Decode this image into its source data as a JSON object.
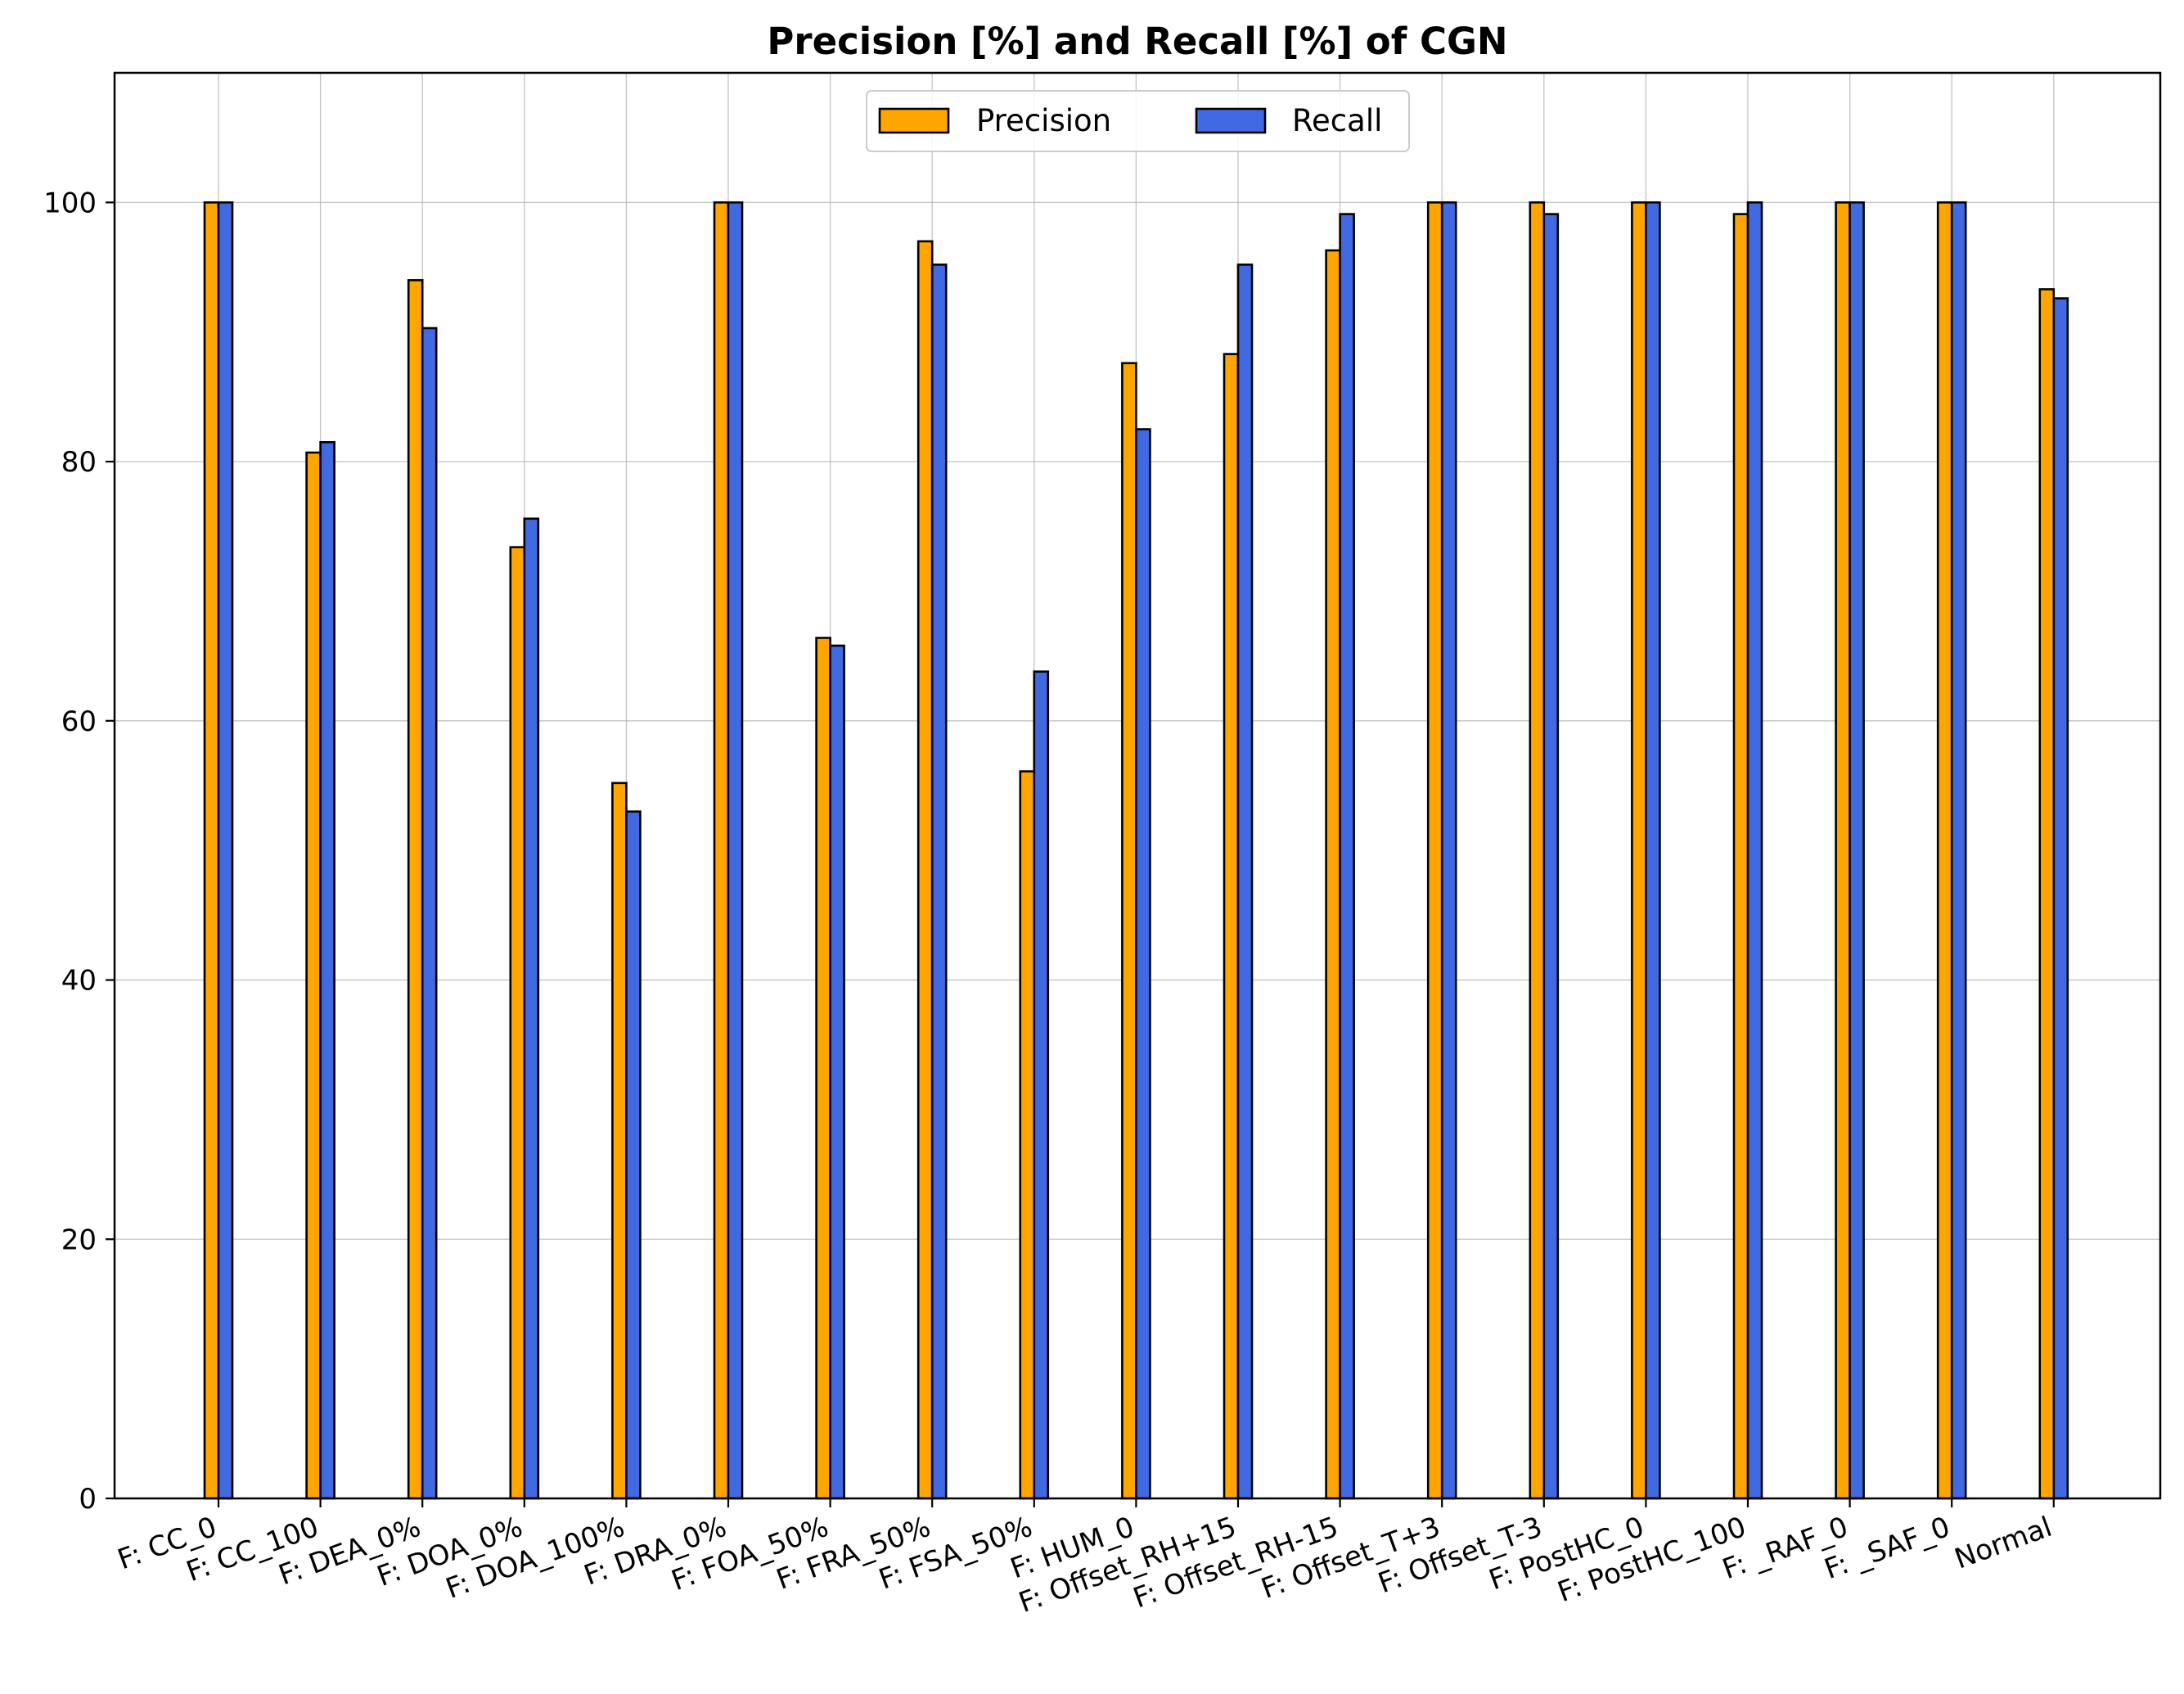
{
  "chart_data": {
    "type": "bar",
    "title": "Precision [%] and Recall [%] of CGN",
    "xlabel": "",
    "ylabel": "",
    "ylim": [
      0,
      110
    ],
    "yticks": [
      0,
      20,
      40,
      60,
      80,
      100
    ],
    "grid": true,
    "legend": {
      "placement": "top-center",
      "columns": 2
    },
    "categories": [
      "F: CC_0",
      "F: CC_100",
      "F: DEA_0%",
      "F: DOA_0%",
      "F: DOA_100%",
      "F: DRA_0%",
      "F: FOA_50%",
      "F: FRA_50%",
      "F: FSA_50%",
      "F: HUM_0",
      "F: Offset_RH+15",
      "F: Offset_RH-15",
      "F: Offset_T+3",
      "F: Offset_T-3",
      "F: PostHC_0",
      "F: PostHC_100",
      "F: _RAF_0",
      "F: _SAF_0",
      "Normal"
    ],
    "series": [
      {
        "name": "Precision",
        "color": "#ffa500",
        "values": [
          100,
          80.7,
          94.0,
          73.4,
          55.2,
          100,
          66.4,
          97.0,
          56.1,
          87.6,
          88.3,
          96.3,
          100,
          100,
          100,
          99.1,
          100,
          100,
          93.3
        ]
      },
      {
        "name": "Recall",
        "color": "#4169e1",
        "values": [
          100,
          81.5,
          90.3,
          75.6,
          53.0,
          100,
          65.8,
          95.2,
          63.8,
          82.5,
          95.2,
          99.1,
          100,
          99.1,
          100,
          100,
          100,
          100,
          92.6
        ]
      }
    ]
  }
}
